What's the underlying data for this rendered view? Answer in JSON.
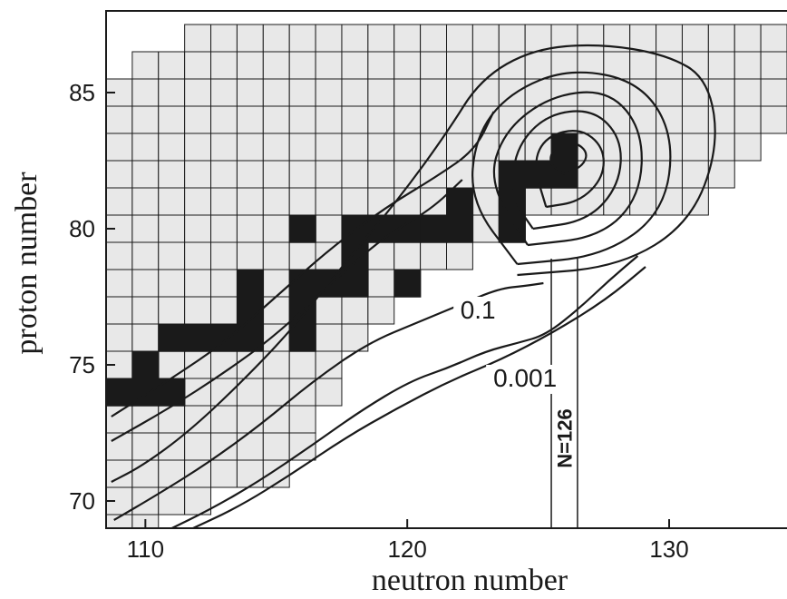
{
  "chart_data": {
    "type": "heatmap",
    "xlabel": "neutron number",
    "ylabel": "proton number",
    "xlim": [
      108.5,
      134.5
    ],
    "ylim": [
      69,
      88
    ],
    "x_ticks": [
      110,
      120,
      130
    ],
    "x_tick_labels": [
      "110",
      "120",
      "130"
    ],
    "y_ticks": [
      70,
      75,
      80,
      85
    ],
    "y_tick_labels": [
      "70",
      "75",
      "80",
      "85"
    ],
    "cell_colors": {
      "known": "#e8e8e8",
      "stable": "#1a1a1a",
      "grid": "#1a1a1a"
    },
    "known_nuclides": [
      {
        "z": 69,
        "n_min": 109,
        "n_max": 110
      },
      {
        "z": 70,
        "n_min": 109,
        "n_max": 112
      },
      {
        "z": 71,
        "n_min": 109,
        "n_max": 115
      },
      {
        "z": 72,
        "n_min": 109,
        "n_max": 116
      },
      {
        "z": 73,
        "n_min": 109,
        "n_max": 116
      },
      {
        "z": 74,
        "n_min": 109,
        "n_max": 117
      },
      {
        "z": 75,
        "n_min": 109,
        "n_max": 117
      },
      {
        "z": 76,
        "n_min": 109,
        "n_max": 118
      },
      {
        "z": 77,
        "n_min": 109,
        "n_max": 119
      },
      {
        "z": 78,
        "n_min": 109,
        "n_max": 119
      },
      {
        "z": 79,
        "n_min": 109,
        "n_max": 122
      },
      {
        "z": 80,
        "n_min": 109,
        "n_max": 124
      },
      {
        "z": 81,
        "n_min": 109,
        "n_max": 131
      },
      {
        "z": 82,
        "n_min": 109,
        "n_max": 132
      },
      {
        "z": 83,
        "n_min": 109,
        "n_max": 133
      },
      {
        "z": 84,
        "n_min": 109,
        "n_max": 134
      },
      {
        "z": 85,
        "n_min": 109,
        "n_max": 134
      },
      {
        "z": 86,
        "n_min": 110,
        "n_max": 134
      },
      {
        "z": 87,
        "n_min": 112,
        "n_max": 134
      }
    ],
    "stable_nuclides": [
      {
        "n": 109,
        "z": 74
      },
      {
        "n": 110,
        "z": 74
      },
      {
        "n": 110,
        "z": 75
      },
      {
        "n": 111,
        "z": 74
      },
      {
        "n": 111,
        "z": 76
      },
      {
        "n": 112,
        "z": 76
      },
      {
        "n": 113,
        "z": 76
      },
      {
        "n": 114,
        "z": 76
      },
      {
        "n": 114,
        "z": 77
      },
      {
        "n": 114,
        "z": 78
      },
      {
        "n": 116,
        "z": 76
      },
      {
        "n": 116,
        "z": 77
      },
      {
        "n": 116,
        "z": 78
      },
      {
        "n": 117,
        "z": 78
      },
      {
        "n": 118,
        "z": 78
      },
      {
        "n": 116,
        "z": 80
      },
      {
        "n": 118,
        "z": 79
      },
      {
        "n": 118,
        "z": 80
      },
      {
        "n": 119,
        "z": 80
      },
      {
        "n": 120,
        "z": 80
      },
      {
        "n": 120,
        "z": 78
      },
      {
        "n": 121,
        "z": 80
      },
      {
        "n": 122,
        "z": 80
      },
      {
        "n": 122,
        "z": 81
      },
      {
        "n": 124,
        "z": 80
      },
      {
        "n": 124,
        "z": 81
      },
      {
        "n": 124,
        "z": 82
      },
      {
        "n": 125,
        "z": 82
      },
      {
        "n": 126,
        "z": 82
      },
      {
        "n": 126,
        "z": 83
      }
    ],
    "contours": [
      {
        "label": "",
        "points": [
          [
            126.0,
            82.0
          ],
          [
            126.7,
            82.3
          ],
          [
            126.9,
            82.8
          ],
          [
            126.4,
            83.2
          ],
          [
            125.6,
            83.0
          ],
          [
            125.4,
            82.4
          ],
          [
            126.0,
            82.0
          ]
        ]
      },
      {
        "label": "",
        "points": [
          [
            125.3,
            80.8
          ],
          [
            126.6,
            81.0
          ],
          [
            127.5,
            81.9
          ],
          [
            127.5,
            83.0
          ],
          [
            126.6,
            83.7
          ],
          [
            125.3,
            83.4
          ],
          [
            124.8,
            82.4
          ],
          [
            125.3,
            80.8
          ]
        ]
      },
      {
        "label": "",
        "points": [
          [
            124.8,
            80.0
          ],
          [
            126.9,
            80.3
          ],
          [
            128.1,
            81.6
          ],
          [
            128.2,
            83.3
          ],
          [
            127.1,
            84.4
          ],
          [
            125.3,
            84.2
          ],
          [
            124.1,
            82.9
          ],
          [
            124.0,
            81.1
          ],
          [
            124.8,
            80.0
          ]
        ]
      },
      {
        "label": "",
        "points": [
          [
            124.6,
            79.4
          ],
          [
            127.4,
            79.7
          ],
          [
            128.9,
            81.2
          ],
          [
            129.0,
            83.6
          ],
          [
            127.7,
            85.1
          ],
          [
            125.5,
            84.9
          ],
          [
            123.7,
            83.6
          ],
          [
            123.1,
            81.7
          ],
          [
            124.6,
            79.4
          ]
        ]
      },
      {
        "label": "",
        "points": [
          [
            124.2,
            78.7
          ],
          [
            127.5,
            79.0
          ],
          [
            129.8,
            80.6
          ],
          [
            130.2,
            83.4
          ],
          [
            128.9,
            85.4
          ],
          [
            126.2,
            85.9
          ],
          [
            123.9,
            85.0
          ],
          [
            122.6,
            83.4
          ],
          [
            122.4,
            81.0
          ],
          [
            124.2,
            78.7
          ]
        ]
      },
      {
        "label": "",
        "points": [
          [
            124.2,
            78.3
          ],
          [
            128.1,
            78.6
          ],
          [
            130.8,
            80.2
          ],
          [
            131.9,
            83.0
          ],
          [
            131.5,
            85.5
          ],
          [
            129.9,
            86.4
          ],
          [
            127.3,
            86.8
          ],
          [
            124.8,
            86.6
          ],
          [
            122.8,
            85.5
          ],
          [
            121.5,
            83.5
          ],
          [
            119.6,
            81.0
          ],
          [
            117.5,
            78.6
          ],
          [
            115.6,
            76.3
          ],
          [
            113.5,
            74.2
          ],
          [
            111.6,
            72.5
          ],
          [
            109.9,
            71.3
          ],
          [
            108.7,
            70.7
          ]
        ]
      },
      {
        "label": "",
        "points": [
          [
            108.7,
            73.1
          ],
          [
            111.0,
            74.5
          ],
          [
            113.0,
            75.8
          ],
          [
            115.1,
            77.6
          ],
          [
            117.1,
            79.3
          ],
          [
            119.2,
            80.8
          ],
          [
            121.1,
            81.9
          ],
          [
            122.6,
            82.9
          ],
          [
            123.3,
            84.3
          ]
        ]
      },
      {
        "label": "",
        "points": [
          [
            108.7,
            72.2
          ],
          [
            110.9,
            73.4
          ],
          [
            113.0,
            74.7
          ],
          [
            115.0,
            76.1
          ],
          [
            117.1,
            78.0
          ],
          [
            119.1,
            79.7
          ],
          [
            120.9,
            80.7
          ],
          [
            122.1,
            81.8
          ]
        ]
      },
      {
        "label": "0.1",
        "points": [
          [
            108.8,
            69.3
          ],
          [
            110.4,
            70.2
          ],
          [
            112.4,
            71.4
          ],
          [
            114.4,
            72.8
          ],
          [
            116.4,
            74.4
          ],
          [
            118.5,
            75.8
          ],
          [
            120.5,
            76.6
          ],
          [
            122.0,
            77.2
          ],
          [
            123.5,
            77.8
          ],
          [
            124.5,
            77.9
          ],
          [
            125.2,
            78.0
          ]
        ]
      },
      {
        "label": "0.001",
        "points": [
          [
            110.8,
            68.9
          ],
          [
            112.5,
            69.7
          ],
          [
            114.3,
            70.7
          ],
          [
            116.3,
            72.0
          ],
          [
            118.2,
            73.3
          ],
          [
            120.1,
            74.4
          ],
          [
            121.6,
            74.9
          ],
          [
            123.0,
            75.5
          ],
          [
            124.2,
            75.8
          ],
          [
            125.3,
            76.1
          ],
          [
            126.6,
            77.1
          ],
          [
            127.7,
            78.1
          ],
          [
            128.8,
            79.0
          ]
        ]
      },
      {
        "label": "",
        "points": [
          [
            111.6,
            68.9
          ],
          [
            113.6,
            69.8
          ],
          [
            115.6,
            71.0
          ],
          [
            117.6,
            72.3
          ],
          [
            119.6,
            73.4
          ],
          [
            121.6,
            74.4
          ],
          [
            123.6,
            75.2
          ],
          [
            125.6,
            76.2
          ],
          [
            127.6,
            77.4
          ],
          [
            129.1,
            78.6
          ]
        ]
      }
    ],
    "contour_labels": [
      {
        "text": "0.1",
        "x": 122.7,
        "z": 76.7
      },
      {
        "text": "0.001",
        "x": 124.5,
        "z": 74.2
      }
    ],
    "magic_line": {
      "n": 126,
      "label": "N=126",
      "x_band": [
        125.5,
        126.5
      ],
      "top": 78.9
    }
  }
}
